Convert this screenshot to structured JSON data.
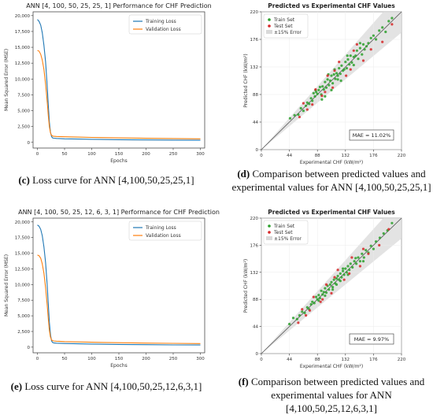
{
  "chart_data": [
    {
      "type": "line",
      "title": "ANN [4, 100, 50, 25, 25, 1] Performance for CHF Prediction",
      "xlabel": "Epochs",
      "ylabel": "Mean Squared Error (MSE)",
      "xlim": [
        -8,
        308
      ],
      "ylim": [
        -900,
        20600
      ],
      "xticks": [
        0,
        50,
        100,
        150,
        200,
        250,
        300
      ],
      "yticks": [
        0,
        2500,
        5000,
        7500,
        10000,
        12500,
        15000,
        17500,
        20000
      ],
      "ytick_labels": [
        "0",
        "2,500",
        "5,000",
        "7,500",
        "10,000",
        "12,500",
        "15,000",
        "17,500",
        "20,000"
      ],
      "legend": "top-right",
      "series": [
        {
          "name": "Training Loss",
          "color": "#1f77b4",
          "x": [
            0,
            3,
            6,
            9,
            12,
            15,
            18,
            20,
            22,
            24,
            26,
            28,
            30,
            35,
            40,
            50,
            75,
            100,
            150,
            200,
            250,
            300
          ],
          "y": [
            19400,
            19100,
            18500,
            17300,
            15300,
            12700,
            9000,
            6000,
            3200,
            1600,
            900,
            700,
            650,
            620,
            600,
            560,
            520,
            480,
            420,
            380,
            350,
            330
          ]
        },
        {
          "name": "Validation Loss",
          "color": "#ff7f0e",
          "x": [
            0,
            3,
            6,
            9,
            12,
            15,
            18,
            20,
            22,
            24,
            26,
            28,
            30,
            35,
            40,
            50,
            75,
            100,
            150,
            200,
            250,
            300
          ],
          "y": [
            14500,
            14400,
            13900,
            13000,
            11500,
            9200,
            6500,
            4300,
            2500,
            1500,
            1100,
            1000,
            950,
            930,
            920,
            880,
            830,
            780,
            700,
            640,
            600,
            560
          ]
        }
      ]
    },
    {
      "type": "scatter",
      "title": "Predicted vs Experimental CHF Values",
      "xlabel": "Experimental CHF (kW/m²)",
      "ylabel": "Predicted CHF (kW/m²)",
      "xlim": [
        0,
        220
      ],
      "ylim": [
        0,
        220
      ],
      "ticks": [
        0,
        44,
        88,
        132,
        176,
        220
      ],
      "legend": "top-left",
      "annotation": "MAE = 11.02%",
      "band_label": "±15% Error",
      "series": [
        {
          "name": "Train Set",
          "color": "#2ca02c",
          "x": [
            45,
            52,
            58,
            62,
            66,
            70,
            72,
            75,
            78,
            80,
            82,
            84,
            86,
            88,
            90,
            92,
            94,
            96,
            98,
            100,
            102,
            104,
            106,
            108,
            110,
            112,
            114,
            116,
            118,
            120,
            122,
            124,
            126,
            128,
            130,
            132,
            134,
            136,
            138,
            140,
            142,
            145,
            148,
            150,
            152,
            155,
            158,
            160,
            162,
            165,
            168,
            172,
            176,
            180,
            185,
            190,
            195,
            200,
            205,
            85,
            95,
            105,
            115,
            125,
            135,
            145,
            155,
            100,
            110,
            120
          ],
          "y": [
            50,
            55,
            56,
            66,
            62,
            70,
            75,
            73,
            82,
            78,
            90,
            85,
            92,
            89,
            95,
            100,
            88,
            101,
            96,
            108,
            99,
            112,
            103,
            110,
            118,
            106,
            120,
            113,
            122,
            118,
            130,
            121,
            134,
            126,
            128,
            140,
            130,
            144,
            136,
            150,
            139,
            148,
            150,
            158,
            145,
            162,
            152,
            168,
            160,
            165,
            170,
            178,
            182,
            176,
            190,
            195,
            188,
            205,
            210,
            95,
            80,
            120,
            128,
            110,
            150,
            135,
            170,
            85,
            95,
            112
          ]
        },
        {
          "name": "Test Set",
          "color": "#d62728",
          "x": [
            60,
            72,
            85,
            95,
            104,
            112,
            122,
            133,
            145,
            160,
            172,
            190,
            205,
            80,
            115,
            140,
            100,
            150,
            66
          ],
          "y": [
            52,
            64,
            96,
            86,
            118,
            99,
            140,
            118,
            158,
            142,
            160,
            172,
            200,
            72,
            126,
            128,
            92,
            168,
            74
          ]
        }
      ]
    },
    {
      "type": "line",
      "title": "ANN [4, 100, 50, 25, 12, 6, 3, 1] Performance for CHF Prediction",
      "xlabel": "Epochs",
      "ylabel": "Mean Squared Error (MSE)",
      "xlim": [
        -8,
        308
      ],
      "ylim": [
        -900,
        20600
      ],
      "xticks": [
        0,
        50,
        100,
        150,
        200,
        250,
        300
      ],
      "yticks": [
        0,
        2500,
        5000,
        7500,
        10000,
        12500,
        15000,
        17500,
        20000
      ],
      "ytick_labels": [
        "0",
        "2,500",
        "5,000",
        "7,500",
        "10,000",
        "12,500",
        "15,000",
        "17,500",
        "20,000"
      ],
      "legend": "top-right",
      "series": [
        {
          "name": "Training Loss",
          "color": "#1f77b4",
          "x": [
            0,
            3,
            6,
            9,
            12,
            15,
            18,
            20,
            22,
            24,
            26,
            28,
            30,
            35,
            40,
            50,
            75,
            100,
            150,
            200,
            250,
            300
          ],
          "y": [
            19500,
            19300,
            18800,
            17800,
            16000,
            13500,
            10000,
            7000,
            4000,
            2000,
            1000,
            750,
            680,
            640,
            620,
            580,
            530,
            490,
            430,
            390,
            360,
            340
          ]
        },
        {
          "name": "Validation Loss",
          "color": "#ff7f0e",
          "x": [
            0,
            3,
            6,
            9,
            12,
            15,
            18,
            20,
            22,
            24,
            26,
            28,
            30,
            35,
            40,
            50,
            75,
            100,
            150,
            200,
            250,
            300
          ],
          "y": [
            14700,
            14600,
            14200,
            13300,
            11800,
            9500,
            6800,
            4600,
            2700,
            1600,
            1150,
            1050,
            980,
            950,
            930,
            890,
            840,
            790,
            710,
            650,
            610,
            570
          ]
        }
      ]
    },
    {
      "type": "scatter",
      "title": "Predicted vs Experimental CHF Values",
      "xlabel": "Experimental CHF (kW/m²)",
      "ylabel": "Predicted CHF (kW/m²)",
      "xlim": [
        0,
        220
      ],
      "ylim": [
        0,
        220
      ],
      "ticks": [
        0,
        44,
        88,
        132,
        176,
        220
      ],
      "legend": "top-left",
      "annotation": "MAE = 9.97%",
      "band_label": "±15% Error",
      "series": [
        {
          "name": "Train Set",
          "color": "#2ca02c",
          "x": [
            44,
            50,
            56,
            60,
            64,
            68,
            72,
            75,
            78,
            80,
            83,
            86,
            88,
            90,
            92,
            94,
            96,
            98,
            100,
            102,
            104,
            106,
            108,
            110,
            112,
            114,
            116,
            118,
            120,
            122,
            124,
            126,
            128,
            130,
            132,
            134,
            136,
            138,
            140,
            143,
            146,
            149,
            152,
            155,
            158,
            161,
            164,
            168,
            172,
            176,
            180,
            186,
            192,
            198,
            205,
            90,
            100,
            112,
            124,
            136,
            148,
            160,
            118,
            128
          ],
          "y": [
            48,
            58,
            56,
            62,
            68,
            66,
            75,
            72,
            80,
            84,
            82,
            92,
            88,
            95,
            90,
            102,
            96,
            100,
            106,
            99,
            110,
            104,
            112,
            116,
            108,
            120,
            114,
            122,
            126,
            120,
            130,
            124,
            134,
            128,
            138,
            132,
            142,
            136,
            146,
            140,
            150,
            146,
            156,
            150,
            162,
            156,
            168,
            164,
            175,
            170,
            182,
            188,
            195,
            200,
            212,
            86,
            94,
            104,
            118,
            128,
            155,
            150,
            112,
            138
          ]
        },
        {
          "name": "Test Set",
          "color": "#d62728",
          "x": [
            58,
            70,
            82,
            93,
            102,
            110,
            120,
            130,
            142,
            155,
            168,
            185,
            200,
            76,
            115,
            138,
            96,
            160,
            64
          ],
          "y": [
            50,
            62,
            92,
            84,
            112,
            98,
            136,
            120,
            156,
            142,
            162,
            176,
            202,
            70,
            124,
            130,
            88,
            170,
            72
          ]
        }
      ]
    }
  ],
  "captions": {
    "c": {
      "letter": "(c)",
      "text": " Loss curve for ANN [4,100,50,25,25,1]"
    },
    "d": {
      "letter": "(d)",
      "text": " Comparison between predicted values and experimental values for ANN [4,100,50,25,25,1]"
    },
    "e": {
      "letter": "(e)",
      "text": " Loss curve for ANN [4,100,50,25,12,6,3,1]"
    },
    "f": {
      "letter": "(f)",
      "text": " Comparison between predicted values and experimental values for ANN [4,100,50,25,12,6,3,1]"
    }
  }
}
